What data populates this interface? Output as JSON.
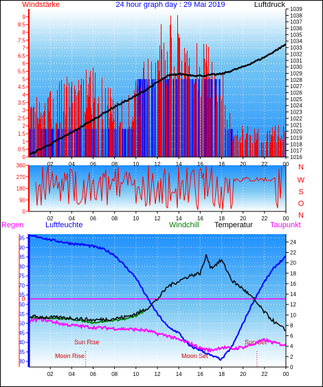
{
  "title": "24 hour graph day : 29 Mai 2019",
  "colors": {
    "wind": "#ff0000",
    "gust_bg": "#0000ff",
    "pressure": "#000000",
    "humidity": "#0000ff",
    "temperature": "#000000",
    "windchill": "#008000",
    "dewpoint": "#ff00ff",
    "regen": "#ff0000",
    "panel_top": "#1e90ff",
    "panel_bottom": "#ffffff"
  },
  "chart_data": [
    {
      "type": "bar",
      "label_left": "Windstärke",
      "label_right": "Luftdruck",
      "yleft_ticks": [
        "0",
        "0.5",
        "1",
        "1.5",
        "2",
        "2.5",
        "3",
        "3.5",
        "4",
        "4.5",
        "5",
        "5.5",
        "6",
        "6.5",
        "7",
        "7.5",
        "8",
        "8.5",
        "9"
      ],
      "yright_ticks": [
        "1016",
        "1017",
        "1018",
        "1019",
        "1020",
        "1021",
        "1022",
        "1023",
        "1024",
        "1025",
        "1026",
        "1027",
        "1028",
        "1029",
        "1030",
        "1031",
        "1032",
        "1033",
        "1034",
        "1035",
        "1036",
        "1037",
        "1038",
        "1039"
      ],
      "x_ticks": [
        "02",
        "04",
        "06",
        "08",
        "10",
        "12",
        "14",
        "16",
        "18",
        "20",
        "22",
        "00"
      ],
      "ylim_left": [
        0,
        9.5
      ],
      "ylim_right": [
        1016,
        1039
      ],
      "pressure": {
        "x": [
          0,
          2,
          4,
          6,
          8,
          10,
          11,
          12,
          13,
          14,
          16,
          18,
          20,
          22,
          24
        ],
        "y": [
          1016.3,
          1018.0,
          1019.8,
          1021.8,
          1023.8,
          1025.5,
          1026.5,
          1027.6,
          1028.6,
          1028.9,
          1028.6,
          1028.9,
          1030.0,
          1031.5,
          1033.5
        ]
      },
      "wind_typical_envelope": {
        "x": [
          0,
          4,
          6,
          9,
          10.5,
          13,
          16,
          18,
          19,
          24
        ],
        "y": [
          3.5,
          5.5,
          5.5,
          3.5,
          5.5,
          9.5,
          7.5,
          5.5,
          2.0,
          2.0
        ]
      }
    },
    {
      "type": "line",
      "label_right_letters": [
        "N",
        "W",
        "S",
        "O",
        "N"
      ],
      "y_ticks": [
        "360",
        "270",
        "180",
        "90",
        "0"
      ],
      "x_ticks": [
        "02",
        "04",
        "06",
        "08",
        "10",
        "12",
        "14",
        "16",
        "18",
        "20",
        "22",
        "00"
      ],
      "ylim": [
        0,
        360
      ]
    },
    {
      "type": "line",
      "legend": [
        "Regen",
        "Luftfeuchte",
        "Windchill",
        "Temperatur",
        "Taupunkt"
      ],
      "yleft_ticks": [
        "30",
        "35",
        "40",
        "45",
        "50",
        "55",
        "60",
        "65",
        "70",
        "75",
        "80",
        "85",
        "90",
        "95"
      ],
      "yright_ticks": [
        "0",
        "2",
        "4",
        "6",
        "8",
        "10",
        "12",
        "14",
        "16",
        "18",
        "20",
        "22",
        "24"
      ],
      "x_ticks": [
        "02",
        "04",
        "06",
        "08",
        "10",
        "12",
        "14",
        "16",
        "18",
        "20",
        "22",
        "00"
      ],
      "ylim_left": [
        27,
        97
      ],
      "ylim_right": [
        0,
        25.5
      ],
      "rain_value_label": "0",
      "annotations": [
        "Sun Rise",
        "Moon Rise",
        "Moon Set",
        "Sun Set"
      ],
      "humidity": {
        "x": [
          0,
          1,
          2,
          3,
          4,
          5,
          6,
          7,
          8,
          9,
          10,
          11,
          12,
          13,
          14,
          15,
          16,
          17,
          18,
          19,
          20,
          21,
          22,
          23,
          24
        ],
        "y": [
          96,
          95.5,
          94,
          93,
          92,
          91.5,
          90.5,
          89,
          86,
          80,
          74,
          64,
          55,
          48,
          45,
          38,
          36,
          33,
          31,
          38,
          50,
          62,
          72,
          80,
          85
        ]
      },
      "temperature": {
        "x": [
          0,
          2,
          4,
          6,
          8,
          9,
          10,
          11,
          12,
          13,
          14,
          15,
          16,
          16.6,
          17,
          18,
          19,
          20,
          21,
          22,
          23,
          24
        ],
        "y": [
          9.7,
          9.5,
          9.4,
          9.0,
          9.3,
          9.6,
          10.2,
          11.2,
          13.0,
          15.5,
          16.5,
          17.5,
          18.0,
          21.5,
          19.0,
          20.5,
          16.5,
          15.0,
          13.0,
          10.5,
          8.5,
          7.0
        ]
      },
      "windchill": {
        "x": [
          0,
          2,
          4,
          6,
          8,
          9,
          10,
          11
        ],
        "y": [
          9.6,
          9.4,
          9.2,
          8.5,
          9.0,
          9.2,
          9.8,
          11.0
        ]
      },
      "dewpoint": {
        "x": [
          0,
          1,
          2,
          3,
          4,
          6,
          8,
          10,
          11,
          12,
          13,
          14,
          15,
          16,
          17,
          18,
          19,
          20,
          21,
          22,
          23,
          24
        ],
        "y": [
          8.8,
          9.2,
          8.8,
          8.3,
          8.0,
          7.6,
          7.4,
          7.2,
          7.0,
          6.4,
          6.0,
          5.2,
          4.6,
          3.6,
          3.2,
          3.8,
          3.5,
          3.8,
          4.4,
          5.2,
          4.6,
          4.2
        ]
      }
    }
  ]
}
